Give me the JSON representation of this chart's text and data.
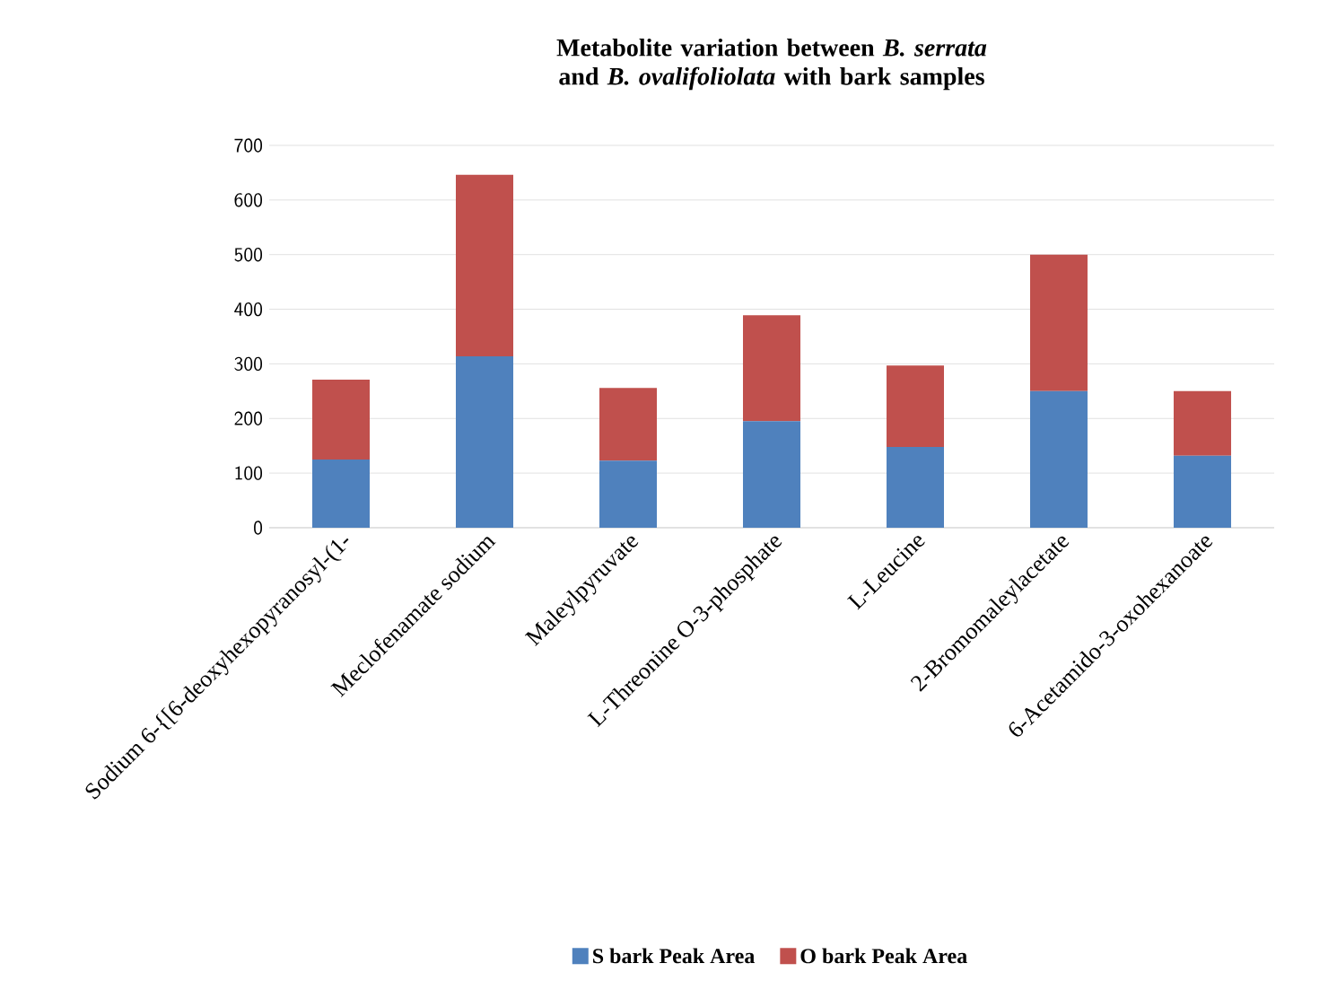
{
  "chart_data": {
    "type": "bar",
    "stacked": true,
    "title": "Metabolite variation between *B. serrata* and *B. ovalifoliolata* with bark samples",
    "categories": [
      "Sodium 6-{[6-deoxyhexopyranosyl-(1-",
      "Meclofenamate sodium",
      "Maleylpyruvate",
      "L-Threonine O-3-phosphate",
      "L-Leucine",
      "2-Bromomaleylacetate",
      "6-Acetamido-3-oxohexanoate"
    ],
    "series": [
      {
        "name": "S bark Peak Area",
        "color": "#4f81bd",
        "values": [
          125,
          314,
          123,
          195,
          148,
          250,
          132
        ]
      },
      {
        "name": "O bark Peak Area",
        "color": "#c0504d",
        "values": [
          146,
          332,
          133,
          194,
          149,
          250,
          118
        ]
      }
    ],
    "ylim": [
      0,
      700
    ],
    "yticks": [
      0,
      100,
      200,
      300,
      400,
      500,
      600,
      700
    ],
    "grid": "y",
    "legend": "bottom"
  }
}
